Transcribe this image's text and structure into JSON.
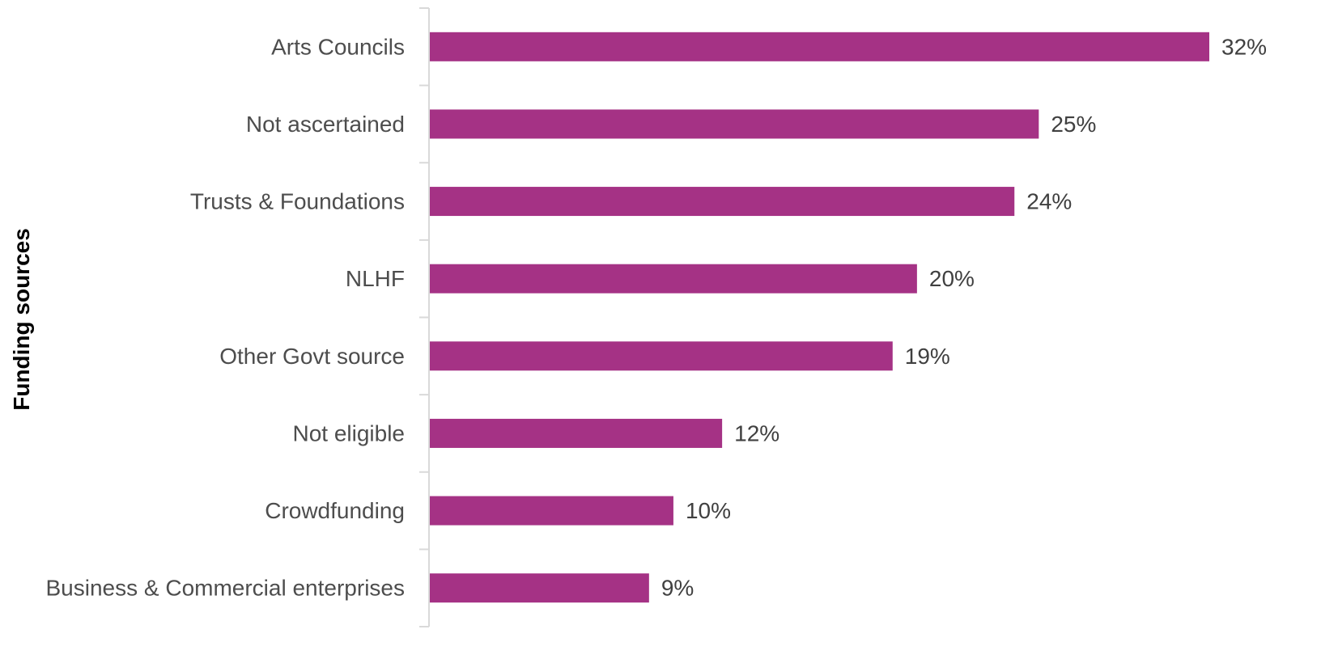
{
  "chart_data": {
    "type": "bar",
    "orientation": "horizontal",
    "categories": [
      "Arts Councils",
      "Not ascertained",
      "Trusts & Foundations",
      "NLHF",
      "Other Govt source",
      "Not eligible",
      "Crowdfunding",
      "Business & Commercial enterprises"
    ],
    "values": [
      32,
      25,
      24,
      20,
      19,
      12,
      10,
      9
    ],
    "value_labels": [
      "32%",
      "25%",
      "24%",
      "20%",
      "19%",
      "12%",
      "10%",
      "9%"
    ],
    "unit": "%",
    "title": "",
    "xlabel": "",
    "ylabel": "Funding sources",
    "xlim": [
      0,
      32
    ],
    "grid": false,
    "legend": "none",
    "colors": {
      "bar": "#a53285",
      "axis": "#d9d9d9",
      "category_text": "#4d4d4d",
      "value_text": "#404040",
      "axis_title": "#000000"
    }
  }
}
